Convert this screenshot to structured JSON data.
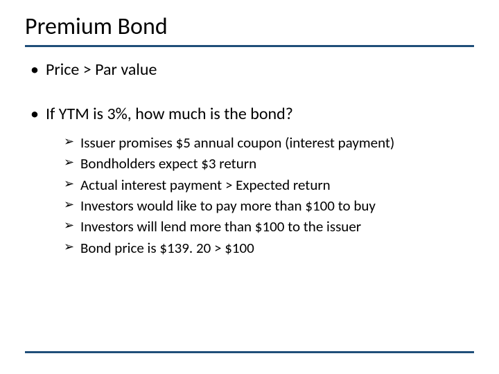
{
  "slide": {
    "title": "Premium Bond",
    "accent_color": "#1f4e79",
    "background_color": "#ffffff",
    "text_color": "#000000",
    "title_fontsize": 34,
    "body_fontsize": 24,
    "sub_fontsize": 21,
    "bullets": [
      {
        "text": "Price > Par value",
        "children": []
      },
      {
        "text": "If YTM is 3%, how much is the bond?",
        "children": [
          "Issuer promises $5 annual coupon (interest payment)",
          "Bondholders expect $3 return",
          "Actual interest payment > Expected return",
          "Investors would like to pay more than $100 to buy",
          "Investors will lend more than $100 to the issuer",
          "Bond price is $139. 20 > $100"
        ]
      }
    ]
  }
}
